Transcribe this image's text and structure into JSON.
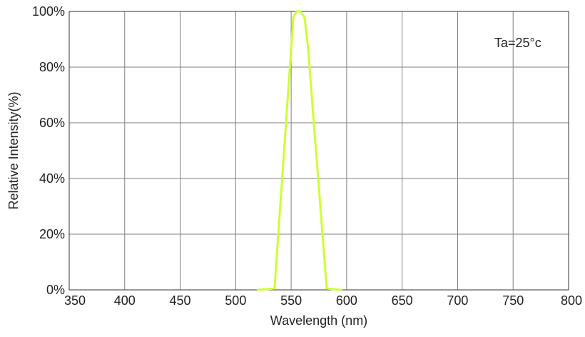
{
  "chart_data": {
    "type": "line",
    "title": "",
    "xlabel": "Wavelength (nm)",
    "ylabel": "Relative Intensity(%)",
    "xlim": [
      350,
      800
    ],
    "ylim": [
      0,
      100
    ],
    "x_ticks": [
      350,
      400,
      450,
      500,
      550,
      600,
      650,
      700,
      750,
      800
    ],
    "y_ticks": [
      0,
      20,
      40,
      60,
      80,
      100
    ],
    "y_tick_suffix": "%",
    "grid": true,
    "annotation": "Ta=25°c",
    "series": [
      {
        "color": "#ccff33",
        "x": [
          520,
          535,
          552,
          555,
          558,
          562,
          565,
          582,
          595
        ],
        "y": [
          0,
          0.5,
          98,
          100,
          100,
          98,
          88,
          0.5,
          0
        ]
      }
    ]
  }
}
